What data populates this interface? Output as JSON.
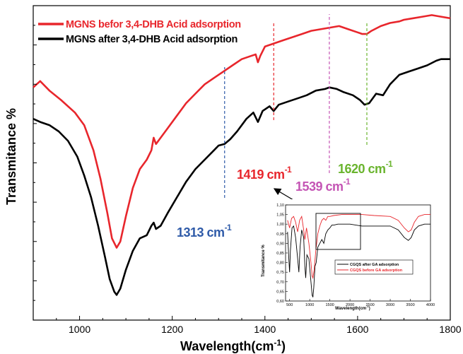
{
  "chart_data": [
    {
      "type": "line",
      "xlabel": "Wavelength(cm",
      "xlabel_sup": "-1",
      "xlabel_close": ")",
      "ylabel": "Transmitance %",
      "xlim": [
        900,
        1800
      ],
      "ylim": [
        0,
        1
      ],
      "x_ticks": [
        1000,
        1200,
        1400,
        1600,
        1800
      ],
      "y_scale_labeled": false,
      "grid": false,
      "legend_position": "top-left",
      "series": [
        {
          "name": "MGNS befor 3,4-DHB Acid adsorption",
          "color": "#e8262c",
          "points": [
            [
              900,
              0.74
            ],
            [
              915,
              0.76
            ],
            [
              935,
              0.73
            ],
            [
              960,
              0.7
            ],
            [
              990,
              0.66
            ],
            [
              1010,
              0.62
            ],
            [
              1030,
              0.54
            ],
            [
              1045,
              0.45
            ],
            [
              1060,
              0.34
            ],
            [
              1070,
              0.26
            ],
            [
              1080,
              0.23
            ],
            [
              1088,
              0.25
            ],
            [
              1100,
              0.33
            ],
            [
              1115,
              0.42
            ],
            [
              1130,
              0.48
            ],
            [
              1145,
              0.51
            ],
            [
              1155,
              0.54
            ],
            [
              1160,
              0.58
            ],
            [
              1165,
              0.56
            ],
            [
              1175,
              0.58
            ],
            [
              1190,
              0.61
            ],
            [
              1210,
              0.65
            ],
            [
              1230,
              0.69
            ],
            [
              1250,
              0.72
            ],
            [
              1270,
              0.75
            ],
            [
              1290,
              0.77
            ],
            [
              1310,
              0.79
            ],
            [
              1330,
              0.81
            ],
            [
              1350,
              0.83
            ],
            [
              1370,
              0.84
            ],
            [
              1380,
              0.845
            ],
            [
              1385,
              0.82
            ],
            [
              1390,
              0.84
            ],
            [
              1400,
              0.87
            ],
            [
              1420,
              0.88
            ],
            [
              1440,
              0.89
            ],
            [
              1460,
              0.9
            ],
            [
              1480,
              0.91
            ],
            [
              1500,
              0.92
            ],
            [
              1520,
              0.925
            ],
            [
              1540,
              0.93
            ],
            [
              1560,
              0.935
            ],
            [
              1580,
              0.925
            ],
            [
              1600,
              0.915
            ],
            [
              1610,
              0.91
            ],
            [
              1620,
              0.91
            ],
            [
              1630,
              0.92
            ],
            [
              1650,
              0.935
            ],
            [
              1670,
              0.945
            ],
            [
              1690,
              0.95
            ],
            [
              1700,
              0.955
            ],
            [
              1720,
              0.96
            ],
            [
              1740,
              0.965
            ],
            [
              1760,
              0.97
            ],
            [
              1780,
              0.965
            ],
            [
              1800,
              0.96
            ]
          ]
        },
        {
          "name": "MGNS after 3,4-DHB Acid adsorption",
          "color": "#000000",
          "points": [
            [
              900,
              0.64
            ],
            [
              915,
              0.63
            ],
            [
              935,
              0.62
            ],
            [
              955,
              0.6
            ],
            [
              975,
              0.57
            ],
            [
              995,
              0.52
            ],
            [
              1010,
              0.46
            ],
            [
              1025,
              0.39
            ],
            [
              1040,
              0.3
            ],
            [
              1055,
              0.2
            ],
            [
              1065,
              0.13
            ],
            [
              1075,
              0.09
            ],
            [
              1080,
              0.08
            ],
            [
              1088,
              0.1
            ],
            [
              1100,
              0.16
            ],
            [
              1115,
              0.22
            ],
            [
              1130,
              0.26
            ],
            [
              1145,
              0.27
            ],
            [
              1155,
              0.3
            ],
            [
              1160,
              0.31
            ],
            [
              1165,
              0.29
            ],
            [
              1175,
              0.3
            ],
            [
              1190,
              0.34
            ],
            [
              1210,
              0.39
            ],
            [
              1230,
              0.44
            ],
            [
              1250,
              0.48
            ],
            [
              1270,
              0.51
            ],
            [
              1290,
              0.54
            ],
            [
              1300,
              0.555
            ],
            [
              1313,
              0.56
            ],
            [
              1325,
              0.575
            ],
            [
              1340,
              0.6
            ],
            [
              1360,
              0.64
            ],
            [
              1375,
              0.66
            ],
            [
              1385,
              0.63
            ],
            [
              1395,
              0.665
            ],
            [
              1410,
              0.68
            ],
            [
              1419,
              0.665
            ],
            [
              1430,
              0.685
            ],
            [
              1450,
              0.695
            ],
            [
              1470,
              0.705
            ],
            [
              1490,
              0.715
            ],
            [
              1510,
              0.73
            ],
            [
              1530,
              0.735
            ],
            [
              1539,
              0.74
            ],
            [
              1555,
              0.735
            ],
            [
              1570,
              0.725
            ],
            [
              1590,
              0.715
            ],
            [
              1605,
              0.7
            ],
            [
              1615,
              0.685
            ],
            [
              1625,
              0.69
            ],
            [
              1640,
              0.72
            ],
            [
              1655,
              0.715
            ],
            [
              1670,
              0.75
            ],
            [
              1690,
              0.78
            ],
            [
              1710,
              0.79
            ],
            [
              1730,
              0.8
            ],
            [
              1750,
              0.81
            ],
            [
              1770,
              0.825
            ],
            [
              1780,
              0.83
            ],
            [
              1800,
              0.83
            ]
          ]
        }
      ],
      "annotations": [
        {
          "x": 1313,
          "label": "1313 cm",
          "sup": "-1",
          "color": "#2e5aa8"
        },
        {
          "x": 1419,
          "label": "1419 cm",
          "sup": "-1",
          "color": "#e8262c"
        },
        {
          "x": 1539,
          "label": "1539 cm",
          "sup": "-1",
          "color": "#c454b4"
        },
        {
          "x": 1620,
          "label": "1620 cm",
          "sup": "-1",
          "color": "#6ab42e"
        }
      ]
    },
    {
      "type": "line",
      "title": "",
      "xlabel": "Wavelength(cm",
      "xlabel_sup": "-1",
      "xlabel_close": ")",
      "ylabel": "Transmitance %",
      "xlim": [
        400,
        4000
      ],
      "ylim": [
        0.6,
        1.1
      ],
      "x_ticks": [
        "500",
        "1000",
        "1500",
        "2000",
        "2500",
        "3000",
        "3500",
        "4000"
      ],
      "y_ticks": [
        "0,60",
        "0,65",
        "0,70",
        "0,75",
        "0,80",
        "0,85",
        "0,90",
        "0,95",
        "1,00",
        "1,05",
        "1,10"
      ],
      "legend_position": "bottom-center",
      "series": [
        {
          "name": "CGQS after GA adsorption",
          "color": "#000000",
          "points": [
            [
              450,
              0.96
            ],
            [
              480,
              0.82
            ],
            [
              500,
              0.75
            ],
            [
              520,
              0.86
            ],
            [
              560,
              0.98
            ],
            [
              600,
              0.99
            ],
            [
              650,
              0.93
            ],
            [
              700,
              0.82
            ],
            [
              730,
              0.75
            ],
            [
              760,
              0.88
            ],
            [
              800,
              0.97
            ],
            [
              850,
              0.93
            ],
            [
              880,
              0.78
            ],
            [
              900,
              0.72
            ],
            [
              930,
              0.84
            ],
            [
              980,
              0.82
            ],
            [
              1030,
              0.7
            ],
            [
              1060,
              0.63
            ],
            [
              1080,
              0.62
            ],
            [
              1100,
              0.67
            ],
            [
              1130,
              0.78
            ],
            [
              1160,
              0.8
            ],
            [
              1200,
              0.88
            ],
            [
              1250,
              0.9
            ],
            [
              1300,
              0.92
            ],
            [
              1350,
              0.9
            ],
            [
              1400,
              0.95
            ],
            [
              1450,
              0.97
            ],
            [
              1500,
              0.98
            ],
            [
              1550,
              0.995
            ],
            [
              1600,
              0.995
            ],
            [
              1700,
              1.0
            ],
            [
              2000,
              1.0
            ],
            [
              2300,
              0.99
            ],
            [
              2600,
              0.99
            ],
            [
              3000,
              0.99
            ],
            [
              3200,
              0.97
            ],
            [
              3350,
              0.93
            ],
            [
              3450,
              0.915
            ],
            [
              3520,
              0.93
            ],
            [
              3600,
              0.97
            ],
            [
              3700,
              0.99
            ],
            [
              3850,
              1.0
            ],
            [
              4000,
              1.0
            ]
          ]
        },
        {
          "name": "CGQS before GA adsorption",
          "color": "#e8262c",
          "points": [
            [
              450,
              1.02
            ],
            [
              500,
              0.98
            ],
            [
              550,
              1.03
            ],
            [
              600,
              1.04
            ],
            [
              650,
              1.01
            ],
            [
              700,
              0.96
            ],
            [
              750,
              1.02
            ],
            [
              800,
              1.04
            ],
            [
              850,
              0.97
            ],
            [
              880,
              0.92
            ],
            [
              920,
              0.98
            ],
            [
              980,
              0.9
            ],
            [
              1030,
              0.8
            ],
            [
              1060,
              0.73
            ],
            [
              1080,
              0.72
            ],
            [
              1110,
              0.76
            ],
            [
              1150,
              0.86
            ],
            [
              1200,
              0.95
            ],
            [
              1250,
              0.99
            ],
            [
              1300,
              1.02
            ],
            [
              1350,
              1.03
            ],
            [
              1400,
              1.02
            ],
            [
              1450,
              1.04
            ],
            [
              1500,
              1.04
            ],
            [
              1600,
              1.045
            ],
            [
              1800,
              1.05
            ],
            [
              2000,
              1.05
            ],
            [
              2300,
              1.05
            ],
            [
              2600,
              1.045
            ],
            [
              3000,
              1.04
            ],
            [
              3200,
              1.02
            ],
            [
              3350,
              0.98
            ],
            [
              3450,
              0.96
            ],
            [
              3520,
              0.97
            ],
            [
              3600,
              1.01
            ],
            [
              3700,
              1.04
            ],
            [
              3850,
              1.05
            ],
            [
              4000,
              1.05
            ]
          ]
        }
      ]
    }
  ]
}
